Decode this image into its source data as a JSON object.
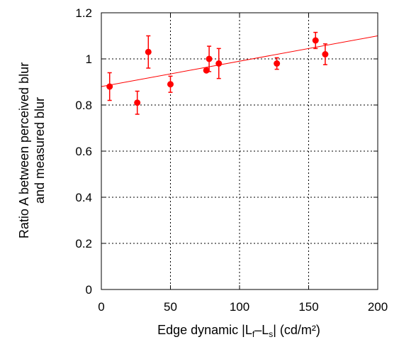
{
  "chart_data": {
    "type": "scatter",
    "xlabel": {
      "main": "Edge dynamic |L",
      "sub1": "f",
      "dash": "–L",
      "sub2": "s",
      "tail": "| (cd/m²)"
    },
    "ylabel_lines": [
      "Ratio A between perceived blur",
      "and measured blur"
    ],
    "xlim": [
      0,
      200
    ],
    "ylim": [
      0,
      1.2
    ],
    "xticks": [
      0,
      50,
      100,
      150,
      200
    ],
    "yticks": [
      0,
      0.2,
      0.4,
      0.6,
      0.8,
      1,
      1.2
    ],
    "xtick_labels": [
      "0",
      "50",
      "100",
      "150",
      "200"
    ],
    "ytick_labels": [
      "0",
      "0.2",
      "0.4",
      "0.6",
      "0.8",
      "1",
      "1.2"
    ],
    "grid": true,
    "series": [
      {
        "points": [
          {
            "x": 6,
            "y": 0.88,
            "err": 0.06
          },
          {
            "x": 26,
            "y": 0.81,
            "err": 0.05
          },
          {
            "x": 34,
            "y": 1.03,
            "err": 0.07
          },
          {
            "x": 50,
            "y": 0.89,
            "err": 0.035
          },
          {
            "x": 76,
            "y": 0.95,
            "err": 0.0
          },
          {
            "x": 78,
            "y": 1.0,
            "err": 0.055
          },
          {
            "x": 85,
            "y": 0.98,
            "err": 0.065
          },
          {
            "x": 127,
            "y": 0.98,
            "err": 0.025
          },
          {
            "x": 155,
            "y": 1.08,
            "err": 0.035
          },
          {
            "x": 162,
            "y": 1.02,
            "err": 0.045
          }
        ]
      }
    ],
    "fit_line": {
      "x": [
        0,
        200
      ],
      "y": [
        0.88,
        1.1
      ]
    },
    "colors": {
      "points": "#ff0000",
      "fit": "#ff0000",
      "grid": "#000000",
      "axes": "#000000"
    }
  }
}
